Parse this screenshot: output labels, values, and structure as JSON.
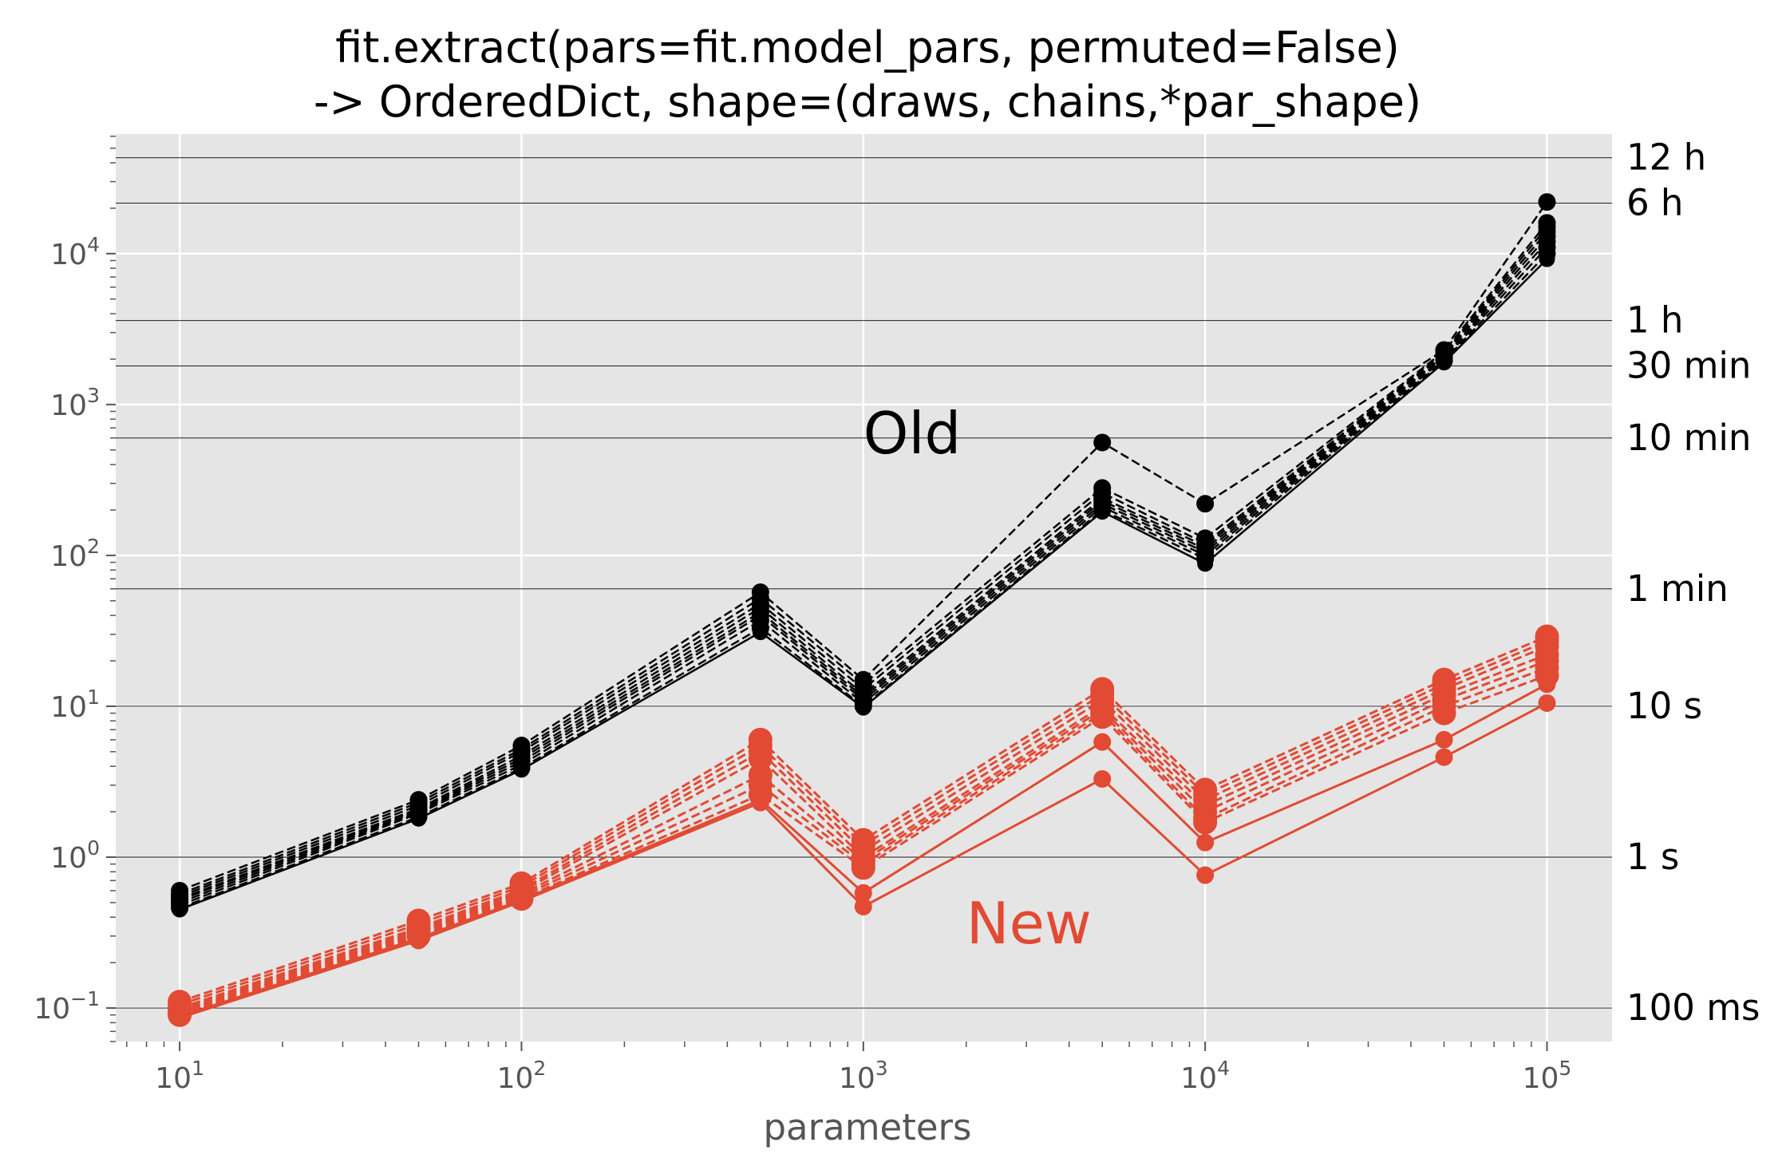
{
  "chart_data": {
    "type": "line",
    "title": "fit.extract(pars=fit.model_pars, permuted=False)",
    "subtitle": "-> OrderedDict, shape=(draws, chains,*par_shape)",
    "xlabel": "parameters",
    "ylabel": "",
    "xscale": "log",
    "yscale": "log",
    "xlim": [
      6.5,
      155000
    ],
    "ylim": [
      0.06,
      62000
    ],
    "grid": true,
    "x": [
      10,
      50,
      100,
      500,
      1000,
      5000,
      10000,
      50000,
      100000
    ],
    "x_ticks": [
      {
        "value": 10,
        "base": "10",
        "exp": "1"
      },
      {
        "value": 100,
        "base": "10",
        "exp": "2"
      },
      {
        "value": 1000,
        "base": "10",
        "exp": "3"
      },
      {
        "value": 10000,
        "base": "10",
        "exp": "4"
      },
      {
        "value": 100000,
        "base": "10",
        "exp": "5"
      }
    ],
    "y_ticks": [
      {
        "value": 0.1,
        "base": "10",
        "exp": "−1"
      },
      {
        "value": 1,
        "base": "10",
        "exp": "0"
      },
      {
        "value": 10,
        "base": "10",
        "exp": "1"
      },
      {
        "value": 100,
        "base": "10",
        "exp": "2"
      },
      {
        "value": 1000,
        "base": "10",
        "exp": "3"
      },
      {
        "value": 10000,
        "base": "10",
        "exp": "4"
      }
    ],
    "reference_lines": [
      {
        "value": 0.1,
        "label": "100 ms"
      },
      {
        "value": 1,
        "label": "1 s"
      },
      {
        "value": 10,
        "label": "10 s"
      },
      {
        "value": 60,
        "label": "1 min"
      },
      {
        "value": 600,
        "label": "10 min"
      },
      {
        "value": 1800,
        "label": "30 min"
      },
      {
        "value": 3600,
        "label": "1 h"
      },
      {
        "value": 21600,
        "label": "6 h"
      },
      {
        "value": 43200,
        "label": "12 h"
      }
    ],
    "annotations": [
      {
        "text": "Old",
        "x": 1000,
        "y": 620,
        "color": "#000000"
      },
      {
        "text": "New",
        "x": 2000,
        "y": 0.35,
        "color": "#e24a33"
      }
    ],
    "colors": {
      "old": "#000000",
      "new": "#e24a33",
      "background": "#e5e5e5",
      "grid": "#ffffff"
    },
    "series": [
      {
        "group": "old",
        "style": "dashed",
        "values": [
          0.6,
          2.4,
          5.5,
          57,
          15,
          560,
          220,
          2300,
          22000
        ]
      },
      {
        "group": "old",
        "style": "dashed",
        "values": [
          0.57,
          2.3,
          5.2,
          52,
          14,
          280,
          130,
          2250,
          16000
        ]
      },
      {
        "group": "old",
        "style": "dashed",
        "values": [
          0.55,
          2.2,
          5.0,
          48,
          13,
          260,
          120,
          2200,
          15000
        ]
      },
      {
        "group": "old",
        "style": "dashed",
        "values": [
          0.53,
          2.1,
          4.7,
          45,
          12,
          240,
          115,
          2150,
          14000
        ]
      },
      {
        "group": "old",
        "style": "dashed",
        "values": [
          0.52,
          2.05,
          4.5,
          42,
          11.5,
          230,
          110,
          2100,
          13000
        ]
      },
      {
        "group": "old",
        "style": "dashed",
        "values": [
          0.5,
          2.0,
          4.3,
          40,
          11,
          220,
          105,
          2050,
          12000
        ]
      },
      {
        "group": "old",
        "style": "dashed",
        "values": [
          0.48,
          1.95,
          4.1,
          37,
          10.5,
          210,
          100,
          2000,
          11000
        ]
      },
      {
        "group": "old",
        "style": "dashed",
        "values": [
          0.46,
          1.85,
          3.9,
          33,
          10,
          200,
          95,
          1950,
          10000
        ]
      },
      {
        "group": "old",
        "style": "solid",
        "values": [
          0.45,
          1.8,
          3.8,
          31,
          9.8,
          195,
          88,
          1900,
          9200
        ]
      },
      {
        "group": "new",
        "style": "dashed",
        "values": [
          0.11,
          0.38,
          0.67,
          6.0,
          1.3,
          13,
          2.8,
          15,
          29
        ]
      },
      {
        "group": "new",
        "style": "dashed",
        "values": [
          0.105,
          0.36,
          0.64,
          5.5,
          1.2,
          12,
          2.6,
          14,
          27
        ]
      },
      {
        "group": "new",
        "style": "dashed",
        "values": [
          0.1,
          0.34,
          0.61,
          5.0,
          1.1,
          11,
          2.4,
          13,
          25
        ]
      },
      {
        "group": "new",
        "style": "dashed",
        "values": [
          0.097,
          0.33,
          0.59,
          4.5,
          1.0,
          10,
          2.2,
          12,
          22
        ]
      },
      {
        "group": "new",
        "style": "dashed",
        "values": [
          0.094,
          0.32,
          0.57,
          3.5,
          0.95,
          9.5,
          2.0,
          11,
          20
        ]
      },
      {
        "group": "new",
        "style": "dashed",
        "values": [
          0.092,
          0.31,
          0.55,
          3.0,
          0.9,
          9.0,
          1.8,
          10,
          18
        ]
      },
      {
        "group": "new",
        "style": "dashed",
        "values": [
          0.09,
          0.3,
          0.53,
          2.6,
          0.85,
          8.5,
          1.7,
          9.0,
          16
        ]
      },
      {
        "group": "new",
        "style": "solid",
        "values": [
          0.088,
          0.29,
          0.52,
          2.4,
          0.58,
          5.8,
          1.25,
          6.0,
          14
        ]
      },
      {
        "group": "new",
        "style": "solid",
        "values": [
          0.086,
          0.28,
          0.51,
          2.3,
          0.47,
          3.3,
          0.76,
          4.6,
          10.5
        ]
      }
    ]
  }
}
